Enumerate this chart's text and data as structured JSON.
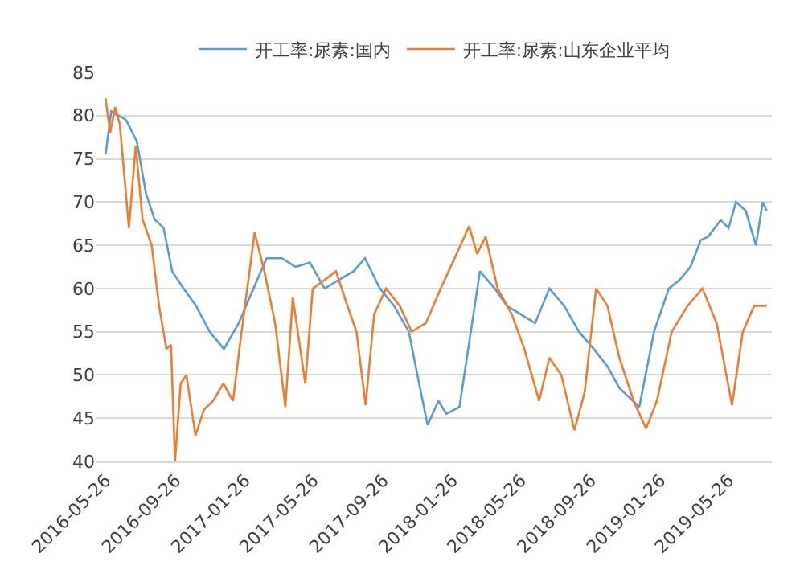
{
  "chart_data": {
    "type": "line",
    "legend": "top",
    "grid": "y",
    "marker": "none",
    "line_style": "solid",
    "ylim": [
      40,
      85
    ],
    "yticks": [
      40,
      45,
      50,
      55,
      60,
      65,
      70,
      75,
      80,
      85
    ],
    "xlim": [
      "2016-05-10",
      "2019-08-10"
    ],
    "xticks": [
      "2016-05-26",
      "2016-09-26",
      "2017-01-26",
      "2017-05-26",
      "2017-09-26",
      "2018-01-26",
      "2018-05-26",
      "2018-09-26",
      "2019-01-26",
      "2019-05-26"
    ],
    "series": [
      {
        "name": "开工率:尿素:国内",
        "color": "#5b9bd5",
        "x": [
          "2016-05-26",
          "2016-06-05",
          "2016-07-01",
          "2016-07-20",
          "2016-08-05",
          "2016-08-20",
          "2016-09-05",
          "2016-09-20",
          "2016-10-10",
          "2016-11-01",
          "2016-11-25",
          "2016-12-20",
          "2017-01-15",
          "2017-02-10",
          "2017-03-05",
          "2017-04-01",
          "2017-04-25",
          "2017-05-20",
          "2017-06-15",
          "2017-07-10",
          "2017-08-05",
          "2017-08-25",
          "2017-09-20",
          "2017-10-15",
          "2017-11-10",
          "2017-11-25",
          "2017-12-13",
          "2018-01-01",
          "2018-01-15",
          "2018-02-07",
          "2018-02-20",
          "2018-03-15",
          "2018-04-10",
          "2018-05-01",
          "2018-05-26",
          "2018-06-20",
          "2018-07-15",
          "2018-08-10",
          "2018-09-05",
          "2018-10-01",
          "2018-10-25",
          "2018-11-15",
          "2018-12-01",
          "2018-12-20",
          "2019-01-15",
          "2019-02-10",
          "2019-03-01",
          "2019-03-20",
          "2019-04-07",
          "2019-04-20",
          "2019-05-12",
          "2019-05-26",
          "2019-06-08",
          "2019-06-25",
          "2019-07-13",
          "2019-07-25",
          "2019-08-01"
        ],
        "values": [
          75.5,
          80.5,
          79.5,
          77,
          71,
          68,
          67,
          62,
          60,
          58,
          55,
          53,
          56,
          60,
          63.5,
          63.5,
          62.5,
          63,
          60,
          61,
          62,
          63.5,
          60,
          58,
          55,
          50,
          44.2,
          47,
          45.5,
          46.3,
          52,
          62,
          60,
          58,
          57,
          56,
          60,
          58,
          55,
          53,
          51,
          48.5,
          47.5,
          46.3,
          55,
          60,
          61,
          62.5,
          65.6,
          66,
          67.9,
          67,
          70,
          69,
          65,
          70,
          69
        ]
      },
      {
        "name": "开工率:尿素:山东企业平均",
        "color": "#ed7d31",
        "x": [
          "2016-05-26",
          "2016-06-03",
          "2016-06-12",
          "2016-06-20",
          "2016-07-06",
          "2016-07-18",
          "2016-07-30",
          "2016-08-15",
          "2016-08-28",
          "2016-09-10",
          "2016-09-18",
          "2016-09-25",
          "2016-10-05",
          "2016-10-15",
          "2016-10-31",
          "2016-11-15",
          "2016-12-01",
          "2016-12-19",
          "2017-01-05",
          "2017-01-20",
          "2017-02-12",
          "2017-03-01",
          "2017-03-20",
          "2017-04-07",
          "2017-04-20",
          "2017-05-12",
          "2017-05-25",
          "2017-06-15",
          "2017-07-05",
          "2017-07-25",
          "2017-08-10",
          "2017-08-26",
          "2017-09-10",
          "2017-10-01",
          "2017-10-25",
          "2017-11-15",
          "2017-12-10",
          "2018-01-05",
          "2018-01-26",
          "2018-02-24",
          "2018-03-10",
          "2018-03-25",
          "2018-04-15",
          "2018-05-10",
          "2018-06-01",
          "2018-06-27",
          "2018-07-15",
          "2018-08-05",
          "2018-08-28",
          "2018-09-15",
          "2018-10-05",
          "2018-10-25",
          "2018-11-15",
          "2018-12-10",
          "2019-01-01",
          "2019-01-20",
          "2019-02-15",
          "2019-03-15",
          "2019-04-10",
          "2019-05-05",
          "2019-06-01",
          "2019-06-20",
          "2019-07-10",
          "2019-08-01"
        ],
        "values": [
          82,
          78,
          81,
          79,
          67,
          76.5,
          68,
          65,
          58,
          53,
          53.5,
          40,
          49,
          50,
          43,
          46,
          47,
          49,
          47,
          55,
          66.5,
          62,
          56,
          46.3,
          59,
          49,
          60,
          61,
          62,
          58,
          55,
          46.5,
          57,
          60,
          58,
          55,
          56,
          60,
          63,
          67.2,
          64,
          66,
          60,
          57,
          53,
          47,
          52,
          50,
          43.6,
          48,
          60,
          58,
          52,
          47,
          43.8,
          47,
          55,
          58,
          60,
          56,
          46.5,
          55,
          58,
          58
        ]
      }
    ]
  }
}
